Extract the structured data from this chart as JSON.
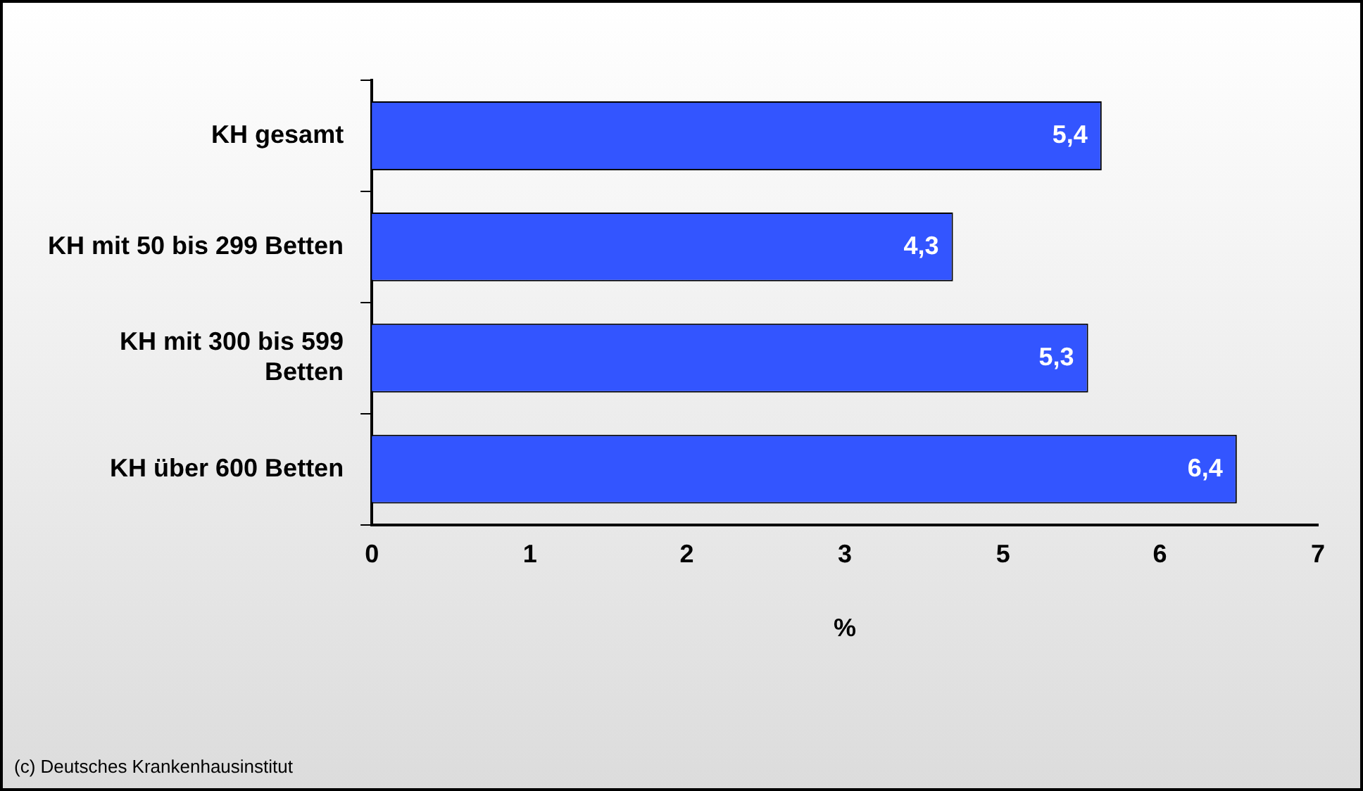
{
  "chart_data": {
    "type": "bar",
    "orientation": "horizontal",
    "categories": [
      "KH gesamt",
      "KH mit 50 bis 299 Betten",
      "KH mit 300 bis 599 Betten",
      "KH über 600 Betten"
    ],
    "values": [
      5.4,
      4.3,
      5.3,
      6.4
    ],
    "color": "#3355ff",
    "value_labels": [
      "5,4",
      "4,3",
      "5,3",
      "6,4"
    ],
    "xlabel": "%",
    "xlim": [
      0,
      7
    ],
    "xticks": [
      0,
      {
        "value": 1.17,
        "label": "1"
      },
      {
        "value": 2.33,
        "label": "2"
      },
      {
        "value": 3.5,
        "label": "3"
      },
      {
        "value": 4.67,
        "label": "5"
      },
      {
        "value": 5.83,
        "label": "6"
      },
      7
    ],
    "grid": false,
    "legend": false,
    "annotations": [
      "(c) Deutsches Krankenhausinstitut"
    ]
  }
}
